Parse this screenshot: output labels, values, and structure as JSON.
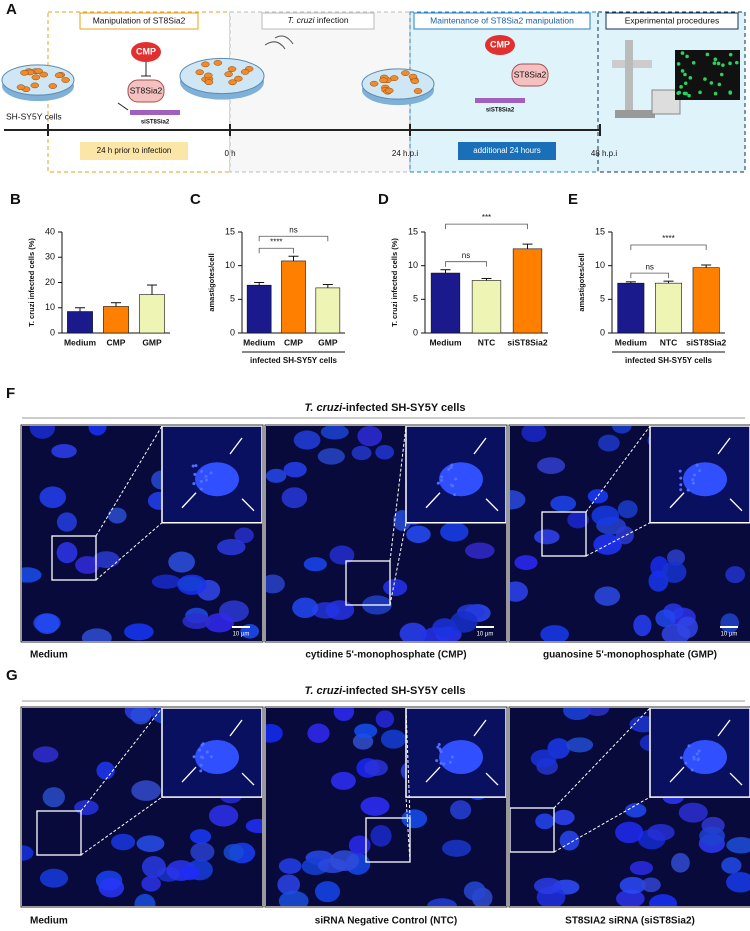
{
  "schematic": {
    "label": "A",
    "phase1": "Manipulation of ST8Sia2",
    "phase2_italic": "T. cruzi",
    "phase2_rest": " infection",
    "phase3": "Maintenance of ST8Sia2 manipulation",
    "phase4": "Experimental procedures",
    "cmp1": "CMP",
    "enzyme1": "ST8Sia2",
    "sirna1": "siST8Sia2",
    "cells": "SH-SY5Y cells",
    "cmp2": "CMP",
    "enzyme2": "ST8Sia2",
    "sirna2": "siST8Sia2",
    "step1": "24 h prior to infection",
    "t0": "0 h",
    "t24": "24 h.p.i",
    "step3": "additional 24 hours",
    "t48": "48 h.p.i"
  },
  "chart_data": [
    {
      "type": "bar",
      "label": "B",
      "ylabel": "T. cruzi infected cells (%)",
      "categories": [
        "Medium",
        "CMP",
        "GMP"
      ],
      "values": [
        8.5,
        10.5,
        15.2
      ],
      "errors": [
        1.5,
        1.5,
        3.8
      ],
      "colors": [
        "#1a1a8c",
        "#ff8000",
        "#eef5b4"
      ],
      "ylim": [
        0,
        40
      ],
      "yticks": [
        0,
        10,
        20,
        30,
        40
      ],
      "comparisons": []
    },
    {
      "type": "bar",
      "label": "C",
      "ylabel": "amastigotes/cell",
      "categories": [
        "Medium",
        "CMP",
        "GMP"
      ],
      "values": [
        7.1,
        10.7,
        6.7
      ],
      "errors": [
        0.4,
        0.7,
        0.5
      ],
      "colors": [
        "#1a1a8c",
        "#ff8000",
        "#eef5b4"
      ],
      "ylim": [
        0,
        15
      ],
      "yticks": [
        0,
        5,
        10,
        15
      ],
      "comparisons": [
        {
          "label": "****"
        },
        {
          "label": "ns"
        }
      ],
      "group": "infected SH-SY5Y cells"
    },
    {
      "type": "bar",
      "label": "D",
      "ylabel": "T. cruzi infected cells (%)",
      "categories": [
        "Medium",
        "NTC",
        "siST8Sia2"
      ],
      "values": [
        8.9,
        7.8,
        12.5
      ],
      "errors": [
        0.5,
        0.3,
        0.7
      ],
      "colors": [
        "#1a1a8c",
        "#eef5b4",
        "#ff8000"
      ],
      "ylim": [
        0,
        15
      ],
      "yticks": [
        0,
        5,
        10,
        15
      ],
      "comparisons": [
        {
          "label": "ns"
        },
        {
          "label": "***"
        }
      ]
    },
    {
      "type": "bar",
      "label": "E",
      "ylabel": "amastigotes/cell",
      "categories": [
        "Medium",
        "NTC",
        "siST8Sia2"
      ],
      "values": [
        7.4,
        7.4,
        9.7
      ],
      "errors": [
        0.2,
        0.3,
        0.4
      ],
      "colors": [
        "#1a1a8c",
        "#eef5b4",
        "#ff8000"
      ],
      "ylim": [
        0,
        15
      ],
      "yticks": [
        0,
        5,
        10,
        15
      ],
      "comparisons": [
        {
          "label": "ns"
        },
        {
          "label": "****"
        }
      ],
      "group": "infected SH-SY5Y cells"
    }
  ],
  "figure_f": {
    "label": "F",
    "title_italic": "T. cruzi",
    "title_rest": "-infected SH-SY5Y cells",
    "panels": [
      {
        "caption": "Medium",
        "scale_bar": "10 µm"
      },
      {
        "caption": "cytidine 5'-monophosphate (CMP)",
        "scale_bar": "10 µm"
      },
      {
        "caption": "guanosine 5'-monophosphate (GMP)",
        "scale_bar": "10 µm"
      }
    ]
  },
  "figure_g": {
    "label": "G",
    "title_italic": "T. cruzi",
    "title_rest": "-infected SH-SY5Y cells",
    "panels": [
      {
        "caption": "Medium"
      },
      {
        "caption": "siRNA Negative Control (NTC)"
      },
      {
        "caption": "ST8SIA2 siRNA (siST8Sia2)"
      }
    ]
  }
}
